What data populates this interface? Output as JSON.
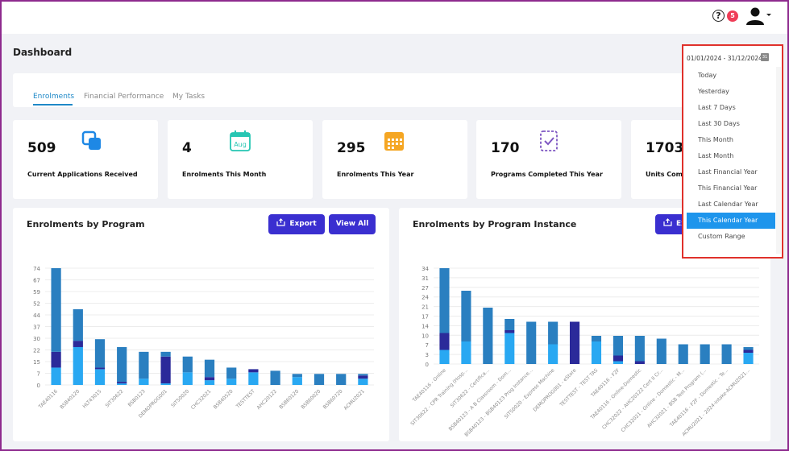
{
  "header": {
    "help_icon": "question-circle-icon",
    "notification_count": "5",
    "user_icon": "user-avatar-icon"
  },
  "page": {
    "title": "Dashboard"
  },
  "tabs": [
    {
      "label": "Enrolments",
      "active": true
    },
    {
      "label": "Financial Performance",
      "active": false
    },
    {
      "label": "My Tasks",
      "active": false
    }
  ],
  "stats": [
    {
      "value": "509",
      "label": "Current Applications Received",
      "icon": "applications-icon",
      "color": "#1e88e5"
    },
    {
      "value": "4",
      "label": "Enrolments This Month",
      "icon": "calendar-month-icon",
      "color": "#26c6b3",
      "icon_text": "Aug"
    },
    {
      "value": "295",
      "label": "Enrolments This Year",
      "icon": "calendar-year-icon",
      "color": "#f5a623"
    },
    {
      "value": "170",
      "label": "Programs Completed This Year",
      "icon": "checklist-icon",
      "color": "#7e57c2"
    },
    {
      "value": "1703",
      "label": "Units Comp",
      "icon": "units-icon",
      "color": "#1e88e5"
    }
  ],
  "panels": {
    "program": {
      "title": "Enrolments by Program",
      "export_label": "Export",
      "viewall_label": "View All",
      "export_icon": "export-icon"
    },
    "instance": {
      "title": "Enrolments by Program Instance",
      "export_label": "Ex"
    }
  },
  "date_range": {
    "value": "01/01/2024 - 31/12/2024",
    "calendar_icon": "calendar-icon",
    "calendar_text": "31",
    "options": [
      "Today",
      "Yesterday",
      "Last 7 Days",
      "Last 30 Days",
      "This Month",
      "Last Month",
      "Last Financial Year",
      "This Financial Year",
      "Last Calendar Year",
      "This Calendar Year",
      "Custom Range"
    ],
    "selected": "This Calendar Year"
  },
  "colors": {
    "accent": "#3a2fd0",
    "series_light": "#29a8f2",
    "series_mid": "#2a7fc0",
    "series_dark": "#2b2a9a",
    "dropdown_border": "#e0312b",
    "selected_option": "#1e95ec"
  },
  "chart_data": [
    {
      "type": "bar",
      "stacked": true,
      "title": "Enrolments by Program",
      "yticks": [
        "74",
        "67",
        "59",
        "52",
        "44",
        "37",
        "30",
        "22",
        "15",
        "7",
        "0"
      ],
      "ylim": [
        0,
        74
      ],
      "categories": [
        "TAE40116",
        "BSB40120",
        "HLT43015",
        "SIT30622",
        "BSB0123",
        "DEMOPROG001",
        "SIT50020",
        "CHC32021",
        "BSB40520",
        "TESTTEST",
        "AHC20122",
        "BSB60120",
        "BSB60020",
        "BSB60720",
        "ACMU2021"
      ],
      "series": [
        {
          "values": [
            11,
            24,
            10,
            1,
            4,
            1,
            8,
            3,
            4,
            8,
            0,
            5,
            0,
            0,
            4
          ]
        },
        {
          "values": [
            10,
            4,
            1,
            1,
            0,
            17,
            0,
            2,
            0,
            2,
            0,
            0,
            0,
            0,
            2
          ]
        },
        {
          "values": [
            53,
            20,
            18,
            22,
            17,
            3,
            10,
            11,
            7,
            0,
            9,
            2,
            7,
            7,
            1
          ]
        }
      ]
    },
    {
      "type": "bar",
      "stacked": true,
      "title": "Enrolments by Program Instance",
      "yticks": [
        "34",
        "31",
        "27",
        "24",
        "21",
        "17",
        "14",
        "10",
        "7",
        "3",
        "0"
      ],
      "ylim": [
        0,
        34
      ],
      "categories": [
        "TAE40116 - Online",
        "SIT30622 - CPR Training (Hosp...",
        "SIT30622 - Certifica...",
        "BSB40123 - A B Classroom - Dom...",
        "BSB40123 - BSB40123 Prog Instance...",
        "SIT50020 - Express Machine",
        "DEMOPROG001 - eStore",
        "TESTTEST - TEST TAS",
        "TAE40116 - F2F",
        "TAE40116 - Online-Domestic",
        "CHC32022 - AHC20122 Cert II Cr...",
        "CHC32021 - Online - Domestic - M...",
        "AHC32021 - BSB Test Program (...",
        "TAE40116 - F2F - Domestic - Te...",
        "ACMU2021 - 2024-intake-ACMU2021..."
      ],
      "series": [
        {
          "values": [
            5,
            8,
            0,
            11,
            0,
            7,
            0,
            8,
            1,
            0,
            0,
            0,
            0,
            0,
            4
          ]
        },
        {
          "values": [
            6,
            0,
            0,
            1,
            0,
            0,
            15,
            0,
            2,
            1,
            0,
            0,
            0,
            0,
            1
          ]
        },
        {
          "values": [
            23,
            18,
            20,
            4,
            15,
            8,
            0,
            2,
            7,
            9,
            9,
            7,
            7,
            7,
            1
          ]
        }
      ]
    }
  ]
}
